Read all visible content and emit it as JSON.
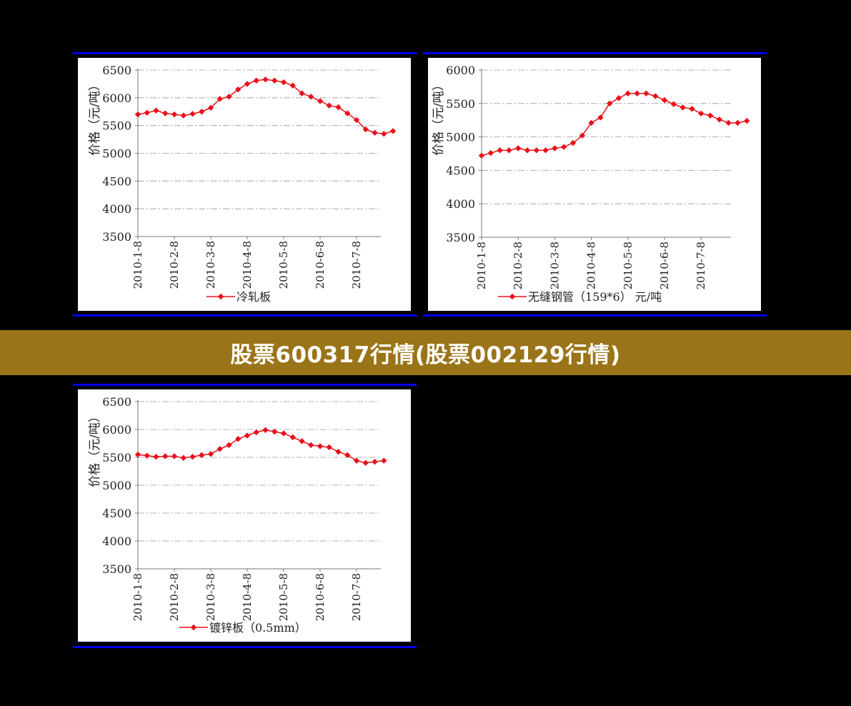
{
  "banner": {
    "title": "股票600317行情(股票002129行情)"
  },
  "chart_data": [
    {
      "type": "line",
      "ylabel": "价格（元/吨）",
      "ylim": [
        3500,
        6500
      ],
      "yticks": [
        3500,
        4000,
        4500,
        5000,
        5500,
        6000,
        6500
      ],
      "xtick_labels": [
        "2010-1-8",
        "2010-2-8",
        "2010-3-8",
        "2010-4-8",
        "2010-5-8",
        "2010-6-8",
        "2010-7-8"
      ],
      "xtick_positions": [
        0,
        4,
        8,
        12,
        16,
        20,
        24
      ],
      "grid": true,
      "legend": "bottom",
      "color": "#e8101a",
      "series": [
        {
          "name": "冷轧板",
          "values": [
            5700,
            5730,
            5770,
            5720,
            5700,
            5680,
            5710,
            5750,
            5820,
            5980,
            6020,
            6150,
            6250,
            6310,
            6330,
            6310,
            6280,
            6220,
            6080,
            6020,
            5940,
            5860,
            5830,
            5720,
            5600,
            5430,
            5370,
            5350,
            5400
          ]
        }
      ]
    },
    {
      "type": "line",
      "ylabel": "价格（元/吨）",
      "ylim": [
        3500,
        6000
      ],
      "yticks": [
        3500,
        4000,
        4500,
        5000,
        5500,
        6000
      ],
      "xtick_labels": [
        "2010-1-8",
        "2010-2-8",
        "2010-3-8",
        "2010-4-8",
        "2010-5-8",
        "2010-6-8",
        "2010-7-8"
      ],
      "xtick_positions": [
        0,
        4,
        8,
        12,
        16,
        20,
        24
      ],
      "grid": true,
      "legend": "bottom",
      "color": "#e8101a",
      "series": [
        {
          "name": "无缝钢管（159*6） 元/吨",
          "values": [
            4720,
            4760,
            4800,
            4800,
            4830,
            4800,
            4800,
            4800,
            4830,
            4850,
            4910,
            5020,
            5210,
            5290,
            5500,
            5580,
            5650,
            5650,
            5650,
            5610,
            5550,
            5490,
            5440,
            5420,
            5350,
            5320,
            5260,
            5210,
            5210,
            5240
          ]
        }
      ]
    },
    {
      "type": "line",
      "ylabel": "价格（元/吨）",
      "ylim": [
        3500,
        6500
      ],
      "yticks": [
        3500,
        4000,
        4500,
        5000,
        5500,
        6000,
        6500
      ],
      "xtick_labels": [
        "2010-1-8",
        "2010-2-8",
        "2010-3-8",
        "2010-4-8",
        "2010-5-8",
        "2010-6-8",
        "2010-7-8"
      ],
      "xtick_positions": [
        0,
        4,
        8,
        12,
        16,
        20,
        24
      ],
      "grid": true,
      "legend": "bottom",
      "color": "#e8101a",
      "series": [
        {
          "name": "镀锌板（0.5mm）",
          "values": [
            5550,
            5530,
            5510,
            5520,
            5520,
            5490,
            5510,
            5540,
            5560,
            5650,
            5720,
            5830,
            5890,
            5950,
            5990,
            5960,
            5930,
            5860,
            5790,
            5720,
            5700,
            5680,
            5600,
            5540,
            5440,
            5400,
            5420,
            5440
          ]
        }
      ]
    }
  ]
}
